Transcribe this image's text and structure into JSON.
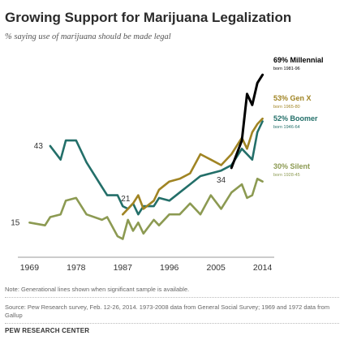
{
  "title": "Growing Support for Marijuana Legalization",
  "subtitle": "% saying use of marijuana should be made legal",
  "chart_data": {
    "type": "line",
    "title": "Growing Support for Marijuana Legalization",
    "subtitle": "% saying use of marijuana should be made legal",
    "xlabel": "",
    "ylabel": "",
    "x_ticks": [
      1969,
      1978,
      1987,
      1996,
      2005,
      2014
    ],
    "xlim": [
      1968,
      2015
    ],
    "ylim": [
      5,
      75
    ],
    "grid": false,
    "series": [
      {
        "name": "Millennial",
        "color": "#000000",
        "label": "69% Millennial",
        "sublabel": "born 1981-96",
        "points": [
          [
            2008,
            35
          ],
          [
            2010,
            45
          ],
          [
            2011,
            62
          ],
          [
            2012,
            58
          ],
          [
            2013,
            66
          ],
          [
            2014,
            69
          ]
        ]
      },
      {
        "name": "Gen X",
        "color": "#a08423",
        "label": "53% Gen X",
        "sublabel": "born 1965-80",
        "points": [
          [
            1987,
            18
          ],
          [
            1989,
            22
          ],
          [
            1990,
            25
          ],
          [
            1991,
            20
          ],
          [
            1993,
            23
          ],
          [
            1994,
            27
          ],
          [
            1996,
            30
          ],
          [
            1998,
            31
          ],
          [
            2000,
            33
          ],
          [
            2002,
            40
          ],
          [
            2004,
            38
          ],
          [
            2006,
            36
          ],
          [
            2008,
            40
          ],
          [
            2010,
            46
          ],
          [
            2011,
            42
          ],
          [
            2012,
            48
          ],
          [
            2013,
            51
          ],
          [
            2014,
            53
          ]
        ]
      },
      {
        "name": "Boomer",
        "color": "#236f69",
        "label": "52% Boomer",
        "sublabel": "born 1946-64",
        "points": [
          [
            1973,
            43
          ],
          [
            1975,
            38
          ],
          [
            1976,
            45
          ],
          [
            1978,
            45
          ],
          [
            1980,
            37
          ],
          [
            1983,
            28
          ],
          [
            1984,
            25
          ],
          [
            1986,
            25
          ],
          [
            1987,
            21
          ],
          [
            1988,
            20
          ],
          [
            1989,
            22
          ],
          [
            1990,
            18
          ],
          [
            1991,
            21
          ],
          [
            1993,
            21
          ],
          [
            1994,
            24
          ],
          [
            1996,
            23
          ],
          [
            1998,
            26
          ],
          [
            2000,
            29
          ],
          [
            2002,
            32
          ],
          [
            2004,
            33
          ],
          [
            2006,
            34
          ],
          [
            2008,
            36
          ],
          [
            2010,
            42
          ],
          [
            2011,
            40
          ],
          [
            2012,
            38
          ],
          [
            2013,
            48
          ],
          [
            2014,
            52
          ]
        ]
      },
      {
        "name": "Silent",
        "color": "#8c9a52",
        "label": "30% Silent",
        "sublabel": "born 1928-45",
        "points": [
          [
            1969,
            15
          ],
          [
            1972,
            14
          ],
          [
            1973,
            17
          ],
          [
            1975,
            18
          ],
          [
            1976,
            23
          ],
          [
            1978,
            24
          ],
          [
            1980,
            18
          ],
          [
            1983,
            16
          ],
          [
            1984,
            17
          ],
          [
            1986,
            10
          ],
          [
            1987,
            9
          ],
          [
            1988,
            16
          ],
          [
            1989,
            12
          ],
          [
            1990,
            15
          ],
          [
            1991,
            11
          ],
          [
            1993,
            16
          ],
          [
            1994,
            14
          ],
          [
            1996,
            18
          ],
          [
            1998,
            18
          ],
          [
            2000,
            22
          ],
          [
            2002,
            18
          ],
          [
            2004,
            25
          ],
          [
            2006,
            20
          ],
          [
            2008,
            26
          ],
          [
            2010,
            29
          ],
          [
            2011,
            24
          ],
          [
            2012,
            25
          ],
          [
            2013,
            31
          ],
          [
            2014,
            30
          ]
        ]
      }
    ],
    "annotations": [
      {
        "text": "43",
        "x": 1973,
        "y": 43
      },
      {
        "text": "21",
        "x": 1987,
        "y": 21
      },
      {
        "text": "15",
        "x": 1969,
        "y": 15
      },
      {
        "text": "34",
        "x": 2006,
        "y": 34
      }
    ]
  },
  "note": "Note: Generational lines shown when significant sample is available.",
  "source": "Source: Pew Research survey, Feb. 12-26, 2014. 1973-2008 data from General Social Survey; 1969 and 1972 data from Gallup",
  "org": "PEW RESEARCH CENTER"
}
